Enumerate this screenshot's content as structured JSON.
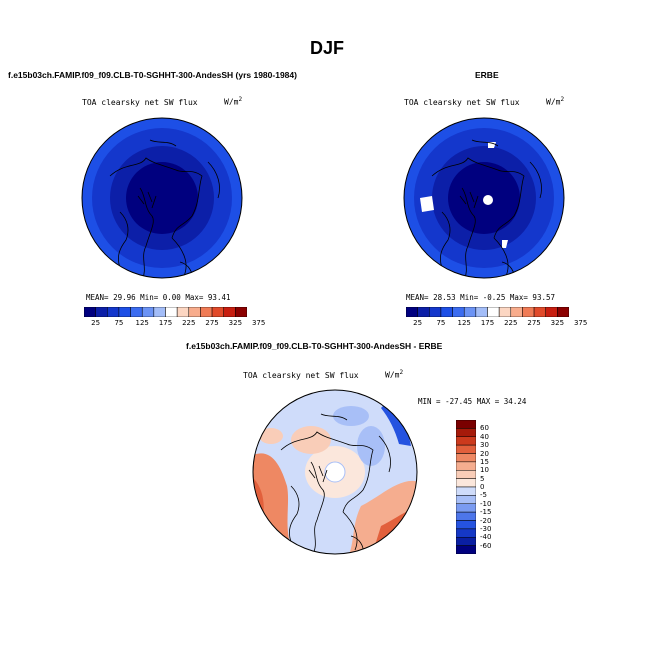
{
  "figure_title": "DJF",
  "panels": {
    "model": {
      "heading": "f.e15b03ch.FAMIP.f09_f09.CLB-T0-SGHHT-300-AndesSH (yrs 1980-1984)",
      "variable": "TOA clearsky net SW flux",
      "units": "W/m",
      "units_exp": "2",
      "stats": "MEAN=  29.96  Min=   0.00  Max=  93.41"
    },
    "obs": {
      "heading": "ERBE",
      "variable": "TOA clearsky net SW flux",
      "units": "W/m",
      "units_exp": "2",
      "stats": "MEAN=  28.53  Min=  -0.25  Max=  93.57"
    },
    "diff": {
      "heading": "f.e15b03ch.FAMIP.f09_f09.CLB-T0-SGHHT-300-AndesSH - ERBE",
      "variable": "TOA clearsky net SW flux",
      "units": "W/m",
      "units_exp": "2",
      "stats": "MIN = -27.45  MAX =  34.24"
    }
  },
  "colors": {
    "abs_scale": [
      "#00007f",
      "#0c1fa8",
      "#1437cc",
      "#1d4fe6",
      "#3b6cf0",
      "#6b93f5",
      "#a3bdf8",
      "#ffffff",
      "#fcd6c2",
      "#f8ac8c",
      "#f07b55",
      "#e14a2a",
      "#c81e10",
      "#8b0000"
    ],
    "diff_scale": [
      "#00007f",
      "#0a1fa3",
      "#1538c6",
      "#2553e0",
      "#4d76ea",
      "#7a9bf1",
      "#a8bff7",
      "#cfdcfa",
      "#fbe7dc",
      "#f9cdb8",
      "#f5ad8f",
      "#ee8863",
      "#e2603c",
      "#cc3a1d",
      "#a61a0a",
      "#7a0000"
    ]
  },
  "chart_data": [
    {
      "type": "heatmap",
      "projection": "north-polar-stereographic",
      "title": "TOA clearsky net SW flux",
      "colorbar_labels": [
        "25",
        "75",
        "125",
        "175",
        "225",
        "275",
        "325",
        "375"
      ],
      "colorbar_orientation": "horizontal",
      "stats": {
        "MEAN": 29.96,
        "Min": 0.0,
        "Max": 93.41
      },
      "dominant_range": [
        0,
        50
      ]
    },
    {
      "type": "heatmap",
      "projection": "north-polar-stereographic",
      "title": "TOA clearsky net SW flux",
      "colorbar_labels": [
        "25",
        "75",
        "125",
        "175",
        "225",
        "275",
        "325",
        "375"
      ],
      "colorbar_orientation": "horizontal",
      "stats": {
        "MEAN": 28.53,
        "Min": -0.25,
        "Max": 93.57
      },
      "dominant_range": [
        0,
        50
      ]
    },
    {
      "type": "heatmap",
      "projection": "north-polar-stereographic",
      "title": "TOA clearsky net SW flux",
      "colorbar_labels": [
        "60",
        "40",
        "30",
        "20",
        "15",
        "10",
        "5",
        "0",
        "-5",
        "-10",
        "-15",
        "-20",
        "-30",
        "-40",
        "-60"
      ],
      "colorbar_orientation": "vertical",
      "stats": {
        "MIN": -27.45,
        "MAX": 34.24
      },
      "dominant_range": [
        -5,
        5
      ]
    }
  ]
}
